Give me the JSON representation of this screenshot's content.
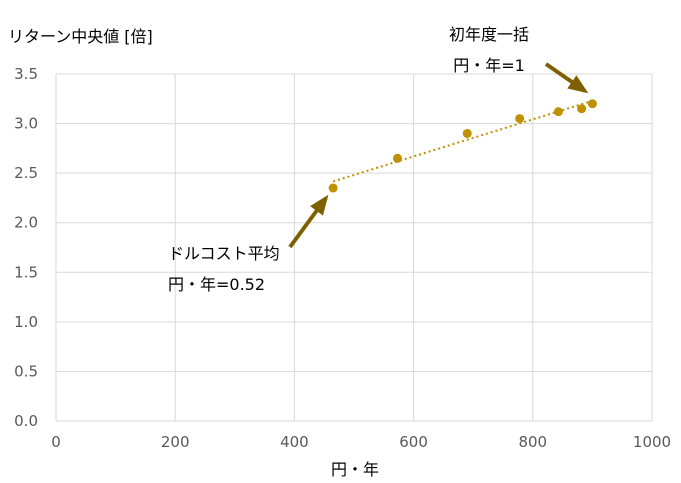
{
  "chart_data": {
    "type": "scatter",
    "ylabel": "リターン中央値 [倍]",
    "xlabel": "円・年",
    "xlim": [
      0,
      1000
    ],
    "ylim": [
      0,
      3.5
    ],
    "x_ticks": [
      "0",
      "200",
      "400",
      "600",
      "800",
      "1000"
    ],
    "y_ticks": [
      "0.0",
      "0.5",
      "1.0",
      "1.5",
      "2.0",
      "2.5",
      "3.0",
      "3.5"
    ],
    "grid": true,
    "legend": "none",
    "series": [
      {
        "points": [
          {
            "x": 465,
            "y": 2.35
          },
          {
            "x": 573,
            "y": 2.65
          },
          {
            "x": 690,
            "y": 2.9
          },
          {
            "x": 778,
            "y": 3.05
          },
          {
            "x": 843,
            "y": 3.12
          },
          {
            "x": 882,
            "y": 3.15
          },
          {
            "x": 900,
            "y": 3.2
          }
        ],
        "color": "#bf9000",
        "trendline": {
          "type": "linear",
          "style": "dotted",
          "from_x": 465,
          "to_x": 900
        }
      }
    ],
    "annotations": [
      {
        "line1": "初年度一括",
        "line2": "円・年=1",
        "target": {
          "x": 900,
          "y": 3.2
        }
      },
      {
        "line1": "ドルコスト平均",
        "line2": "円・年=0.52",
        "target": {
          "x": 465,
          "y": 2.35
        }
      }
    ],
    "arrow_color": "#7f6000",
    "grid_color": "#d9d9d9"
  }
}
